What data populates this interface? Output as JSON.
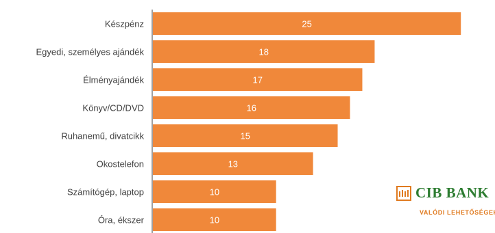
{
  "chart_data": {
    "type": "bar",
    "orientation": "horizontal",
    "categories": [
      "Készpénz",
      "Egyedi, személyes ajándék",
      "Élményajándék",
      "Könyv/CD/DVD",
      "Ruhanemű, divatcikk",
      "Okostelefon",
      "Számítógép, laptop",
      "Óra, ékszer"
    ],
    "values": [
      25,
      18,
      17,
      16,
      15,
      13,
      10,
      10
    ],
    "xlim": [
      0,
      25.6
    ],
    "bar_color": "#f0883a",
    "grid": false,
    "legend": "none"
  },
  "logo": {
    "name": "CIB BANK",
    "tagline": "VALÓDI LEHETŐSÉGEK",
    "green": "#2e7d32",
    "orange": "#e07a1f"
  }
}
